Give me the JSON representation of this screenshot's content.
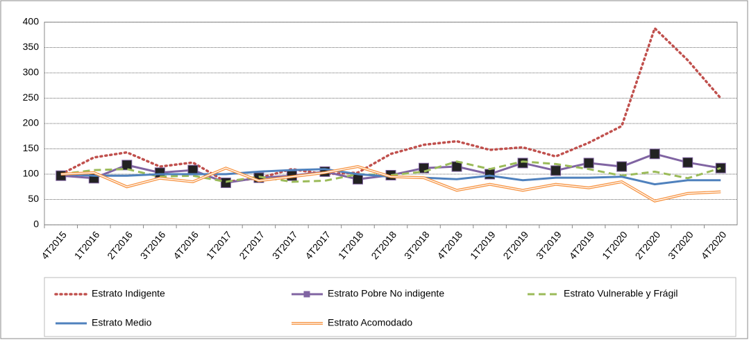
{
  "chart_data": {
    "type": "line",
    "categories": [
      "4T2015",
      "1T2016",
      "2T2016",
      "3T2016",
      "4T2016",
      "1T2017",
      "2T2017",
      "3T2017",
      "4T2017",
      "1T2018",
      "2T2018",
      "3T2018",
      "4T2018",
      "1T2019",
      "2T2019",
      "3T2019",
      "4T2019",
      "1T2020",
      "2T2020",
      "3T2020",
      "4T2020"
    ],
    "series": [
      {
        "name": "Estrato Indigente",
        "color": "#c0504d",
        "style": "dotted",
        "values": [
          100,
          133,
          143,
          115,
          123,
          85,
          92,
          110,
          100,
          103,
          140,
          158,
          165,
          148,
          153,
          135,
          162,
          195,
          388,
          325,
          250
        ]
      },
      {
        "name": "Estrato Pobre No indigente",
        "color": "#8064a2",
        "style": "solid-marker",
        "values": [
          97,
          92,
          118,
          103,
          108,
          83,
          93,
          97,
          105,
          90,
          98,
          112,
          115,
          100,
          122,
          107,
          122,
          115,
          140,
          123,
          112
        ]
      },
      {
        "name": "Estrato Vulnerable y Frágil",
        "color": "#9bbb59",
        "style": "dashed",
        "values": [
          100,
          108,
          110,
          95,
          97,
          85,
          95,
          85,
          87,
          100,
          98,
          105,
          125,
          110,
          125,
          120,
          110,
          97,
          105,
          92,
          112
        ]
      },
      {
        "name": "Estrato Medio",
        "color": "#4f81bd",
        "style": "solid",
        "values": [
          100,
          97,
          97,
          100,
          100,
          100,
          105,
          108,
          110,
          100,
          95,
          93,
          90,
          97,
          88,
          93,
          93,
          95,
          80,
          88,
          88
        ]
      },
      {
        "name": "Estrato Acomodado",
        "color": "#f79646",
        "style": "double",
        "values": [
          100,
          103,
          75,
          92,
          85,
          112,
          87,
          95,
          103,
          115,
          95,
          93,
          68,
          80,
          68,
          80,
          73,
          85,
          47,
          62,
          65
        ]
      }
    ],
    "ylim": [
      0,
      400
    ],
    "yticks": [
      0,
      50,
      100,
      150,
      200,
      250,
      300,
      350,
      400
    ],
    "grid": true
  }
}
